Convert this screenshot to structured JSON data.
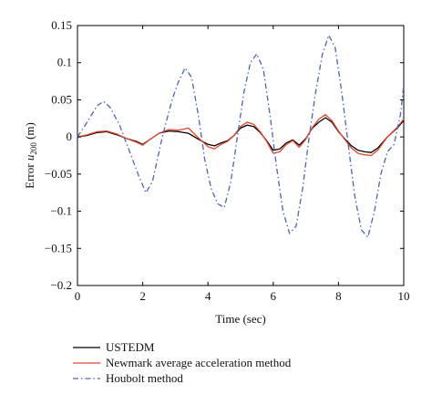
{
  "chart_data": {
    "type": "line",
    "xlabel": "Time (sec)",
    "ylabel_prefix": "Error ",
    "ylabel_var": "u",
    "ylabel_sub": "200",
    "ylabel_suffix": " (m)",
    "xlim": [
      0,
      10
    ],
    "ylim": [
      -0.2,
      0.15
    ],
    "x_ticks": [
      0,
      2,
      4,
      6,
      8,
      10
    ],
    "x_tick_labels": [
      "0",
      "2",
      "4",
      "6",
      "8",
      "10"
    ],
    "y_ticks": [
      0.15,
      0.1,
      0.05,
      0,
      -0.05,
      -0.1,
      -0.15,
      -0.2
    ],
    "y_tick_labels": [
      "0.15",
      "0.1",
      "0.05",
      "0",
      "−0.05",
      "−0.1",
      "−0.15",
      "−0.2"
    ],
    "grid": false,
    "legend_position": "bottom-left, below plot",
    "series": [
      {
        "name": "USTEDM",
        "color": "#000000",
        "dash": "solid",
        "x": [
          0,
          0.3,
          0.6,
          0.9,
          1.2,
          1.5,
          1.8,
          2.0,
          2.2,
          2.5,
          2.8,
          3.1,
          3.4,
          3.7,
          4.0,
          4.2,
          4.4,
          4.6,
          4.8,
          5.0,
          5.2,
          5.4,
          5.6,
          5.8,
          6.0,
          6.2,
          6.4,
          6.6,
          6.8,
          7.0,
          7.2,
          7.4,
          7.6,
          7.8,
          8.0,
          8.2,
          8.4,
          8.6,
          8.8,
          9.0,
          9.2,
          9.5,
          9.8,
          10.0
        ],
        "values": [
          0,
          0.002,
          0.006,
          0.007,
          0.003,
          -0.002,
          -0.006,
          -0.01,
          -0.004,
          0.005,
          0.008,
          0.007,
          0.005,
          -0.003,
          -0.01,
          -0.012,
          -0.008,
          -0.005,
          0.002,
          0.012,
          0.016,
          0.014,
          0.006,
          -0.005,
          -0.018,
          -0.016,
          -0.008,
          -0.004,
          -0.011,
          -0.002,
          0.012,
          0.02,
          0.026,
          0.02,
          0.007,
          -0.003,
          -0.012,
          -0.018,
          -0.02,
          -0.021,
          -0.015,
          0.0,
          0.012,
          0.022
        ]
      },
      {
        "name": "Newmark average acceleration method",
        "color": "#e8452a",
        "dash": "solid",
        "x": [
          0,
          0.3,
          0.6,
          0.9,
          1.2,
          1.5,
          1.8,
          2.0,
          2.2,
          2.5,
          2.8,
          3.1,
          3.4,
          3.7,
          4.0,
          4.2,
          4.4,
          4.6,
          4.8,
          5.0,
          5.2,
          5.4,
          5.6,
          5.8,
          6.0,
          6.2,
          6.4,
          6.6,
          6.8,
          7.0,
          7.2,
          7.4,
          7.6,
          7.8,
          8.0,
          8.2,
          8.4,
          8.6,
          8.8,
          9.0,
          9.2,
          9.5,
          9.8,
          10.0
        ],
        "values": [
          0,
          0.003,
          0.007,
          0.008,
          0.004,
          -0.002,
          -0.007,
          -0.011,
          -0.004,
          0.005,
          0.01,
          0.009,
          0.012,
          -0.001,
          -0.013,
          -0.016,
          -0.01,
          -0.006,
          0.002,
          0.014,
          0.02,
          0.017,
          0.007,
          -0.006,
          -0.022,
          -0.02,
          -0.01,
          -0.005,
          -0.014,
          -0.003,
          0.013,
          0.024,
          0.03,
          0.022,
          0.008,
          -0.004,
          -0.015,
          -0.022,
          -0.024,
          -0.025,
          -0.018,
          0.0,
          0.013,
          0.024
        ]
      },
      {
        "name": "Houbolt method",
        "color": "#4a63b5",
        "dash": "dashdot",
        "x": [
          0,
          0.3,
          0.6,
          0.8,
          1.0,
          1.3,
          1.6,
          1.9,
          2.1,
          2.3,
          2.6,
          2.9,
          3.1,
          3.3,
          3.5,
          3.7,
          3.9,
          4.1,
          4.3,
          4.5,
          4.7,
          4.9,
          5.1,
          5.3,
          5.5,
          5.7,
          5.9,
          6.1,
          6.3,
          6.5,
          6.7,
          6.9,
          7.1,
          7.3,
          7.5,
          7.7,
          7.9,
          8.1,
          8.3,
          8.5,
          8.7,
          8.9,
          9.1,
          9.3,
          9.5,
          9.7,
          9.9,
          10.0
        ],
        "values": [
          0,
          0.02,
          0.042,
          0.048,
          0.04,
          0.015,
          -0.02,
          -0.055,
          -0.075,
          -0.06,
          0.0,
          0.05,
          0.075,
          0.093,
          0.08,
          0.03,
          -0.03,
          -0.07,
          -0.09,
          -0.095,
          -0.06,
          0.0,
          0.06,
          0.1,
          0.112,
          0.09,
          0.03,
          -0.04,
          -0.1,
          -0.13,
          -0.12,
          -0.07,
          0.0,
          0.06,
          0.11,
          0.137,
          0.12,
          0.06,
          -0.01,
          -0.08,
          -0.125,
          -0.135,
          -0.1,
          -0.05,
          -0.02,
          -0.01,
          0.03,
          0.07
        ]
      }
    ]
  }
}
